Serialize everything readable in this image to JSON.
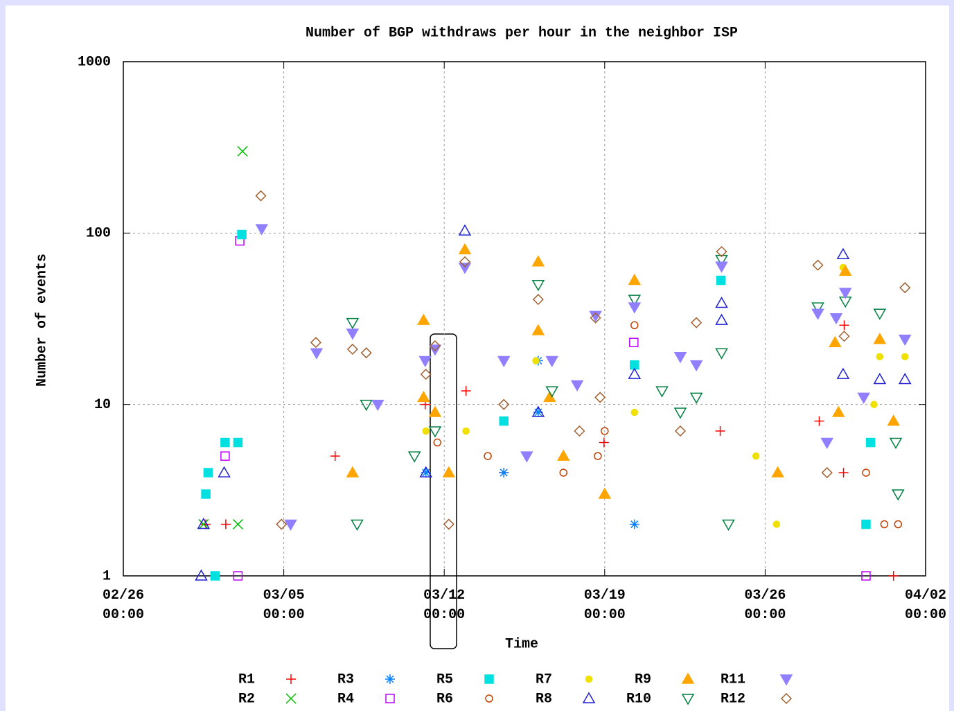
{
  "chart_data": {
    "type": "scatter",
    "title": "Number of BGP withdraws per hour in the neighbor ISP",
    "x_label": "Time",
    "y_label": "Number of events",
    "log_y": true,
    "grid": true,
    "xlim": [
      0,
      35
    ],
    "xticks": [
      {
        "value": 0,
        "label": "02/26\n00:00"
      },
      {
        "value": 7,
        "label": "03/05\n00:00"
      },
      {
        "value": 14,
        "label": "03/12\n00:00"
      },
      {
        "value": 21,
        "label": "03/19\n00:00"
      },
      {
        "value": 28,
        "label": "03/26\n00:00"
      },
      {
        "value": 35,
        "label": "04/02\n00:00"
      }
    ],
    "ylim": [
      1,
      1000
    ],
    "yticks": [
      1,
      10,
      100,
      1000
    ],
    "series": [
      {
        "name": "R1",
        "color": "#ff0000",
        "marker": "plus",
        "x": [
          3.6,
          4.47,
          9.24,
          13.17,
          14.95,
          16.6,
          20.97,
          26.04,
          30.36,
          31.42,
          31.45,
          33.6
        ],
        "values": [
          2,
          2,
          5,
          10,
          12,
          4,
          6,
          7,
          8,
          4,
          29,
          1
        ]
      },
      {
        "name": "R2",
        "color": "#00c000",
        "marker": "cross",
        "x": [
          3.5,
          5.0,
          5.2
        ],
        "values": [
          2,
          2,
          300
        ]
      },
      {
        "name": "R3",
        "color": "#0080ff",
        "marker": "star",
        "x": [
          13.2,
          16.6,
          18.1,
          18.1,
          22.3
        ],
        "values": [
          4,
          4,
          9,
          18,
          2
        ]
      },
      {
        "name": "R4",
        "color": "#c000ff",
        "marker": "open-square",
        "x": [
          4.44,
          5.0,
          5.08,
          22.27,
          32.4
        ],
        "values": [
          5,
          1,
          90,
          23,
          1
        ]
      },
      {
        "name": "R5",
        "color": "#00e0e0",
        "marker": "square",
        "x": [
          3.6,
          3.7,
          4.0,
          4.44,
          5.0,
          5.17,
          16.6,
          22.3,
          26.07,
          32.4,
          32.6
        ],
        "values": [
          3,
          4,
          1,
          6,
          6,
          98,
          8,
          17,
          53,
          2,
          6
        ]
      },
      {
        "name": "R6",
        "color": "#c04000",
        "marker": "open-circle",
        "x": [
          13.7,
          15.9,
          19.2,
          20.7,
          21.0,
          22.3,
          32.4,
          33.2,
          33.8
        ],
        "values": [
          6,
          5,
          4,
          5,
          7,
          29,
          4,
          2,
          2
        ]
      },
      {
        "name": "R7",
        "color": "#f0e000",
        "marker": "dot",
        "x": [
          13.2,
          14.95,
          18.0,
          22.3,
          27.6,
          28.5,
          31.4,
          32.75,
          33.0,
          34.1
        ],
        "values": [
          7,
          7,
          18,
          9,
          5,
          2,
          63,
          10,
          19,
          19
        ]
      },
      {
        "name": "R8",
        "color": "#2020d0",
        "marker": "open-triangle",
        "x": [
          3.4,
          3.5,
          4.4,
          13.2,
          14.9,
          18.1,
          22.3,
          26.1,
          26.1,
          31.4,
          31.4,
          33.0,
          34.1
        ],
        "values": [
          1,
          2,
          4,
          4,
          103,
          9,
          15,
          31,
          39,
          75,
          15,
          14,
          14
        ]
      },
      {
        "name": "R9",
        "color": "#ffa500",
        "marker": "triangle",
        "x": [
          10.0,
          13.1,
          13.1,
          13.6,
          14.2,
          14.9,
          18.1,
          18.1,
          18.6,
          19.2,
          21.0,
          22.3,
          28.55,
          31.05,
          31.2,
          31.5,
          33.0,
          33.6
        ],
        "values": [
          4,
          31,
          11,
          9,
          4,
          80,
          68,
          27,
          11,
          5,
          3,
          53,
          4,
          23,
          9,
          60,
          24,
          8
        ]
      },
      {
        "name": "R10",
        "color": "#008040",
        "marker": "open-triangle-down",
        "x": [
          10.0,
          10.2,
          10.6,
          12.7,
          13.6,
          18.1,
          18.7,
          22.3,
          23.5,
          24.3,
          25.0,
          26.1,
          26.1,
          26.4,
          30.3,
          31.5,
          33.0,
          33.7,
          33.8
        ],
        "values": [
          30,
          2,
          10,
          5,
          7,
          50,
          12,
          41,
          12,
          9,
          11,
          20,
          70,
          2,
          37,
          40,
          34,
          6,
          3
        ]
      },
      {
        "name": "R11",
        "color": "#9080ff",
        "marker": "triangle-down",
        "x": [
          6.04,
          7.3,
          8.43,
          10.0,
          11.1,
          13.17,
          13.6,
          14.9,
          16.6,
          17.6,
          18.7,
          19.8,
          20.6,
          22.3,
          24.3,
          25.0,
          26.1,
          30.3,
          30.7,
          31.1,
          31.5,
          32.3,
          34.1
        ],
        "values": [
          106,
          2,
          20,
          26,
          10,
          18,
          21,
          63,
          18,
          5,
          18,
          13,
          33,
          37,
          19,
          17,
          64,
          34,
          6,
          32,
          45,
          11,
          24
        ]
      },
      {
        "name": "R12",
        "color": "#a06030",
        "marker": "diamond",
        "x": [
          6.0,
          6.9,
          8.4,
          10.0,
          10.6,
          13.2,
          13.6,
          14.2,
          14.9,
          16.6,
          18.1,
          19.9,
          20.6,
          20.8,
          24.3,
          25.0,
          26.1,
          30.3,
          30.7,
          31.45,
          34.1
        ],
        "values": [
          165,
          2,
          23,
          21,
          20,
          15,
          22,
          2,
          68,
          10,
          41,
          7,
          32,
          11,
          7,
          30,
          78,
          65,
          4,
          25,
          48
        ]
      }
    ]
  }
}
